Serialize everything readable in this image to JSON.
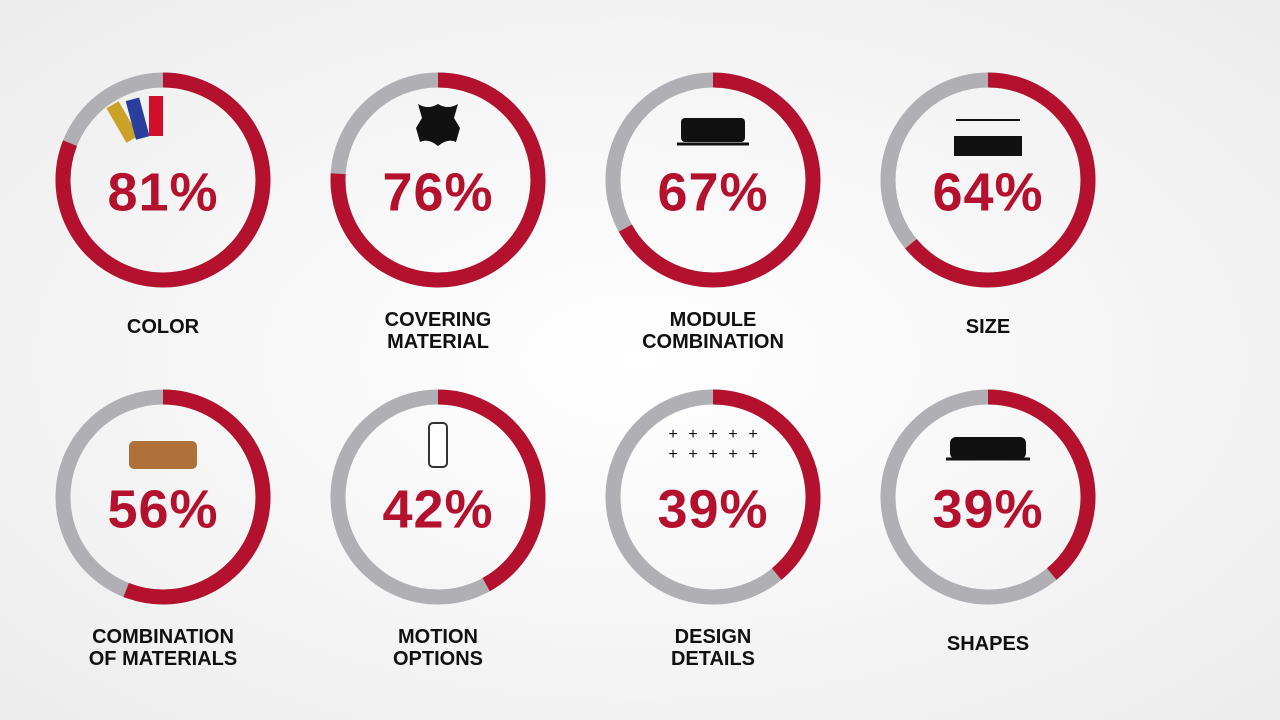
{
  "chart_data": {
    "type": "gauge",
    "categories": [
      "COLOR",
      "COVERING\nMATERIAL",
      "MODULE\nCOMBINATION",
      "SIZE",
      "COMBINATION\nOF MATERIALS",
      "MOTION\nOPTIONS",
      "DESIGN\nDETAILS",
      "SHAPES"
    ],
    "values": [
      81,
      76,
      67,
      64,
      56,
      42,
      39,
      39
    ],
    "value_labels": [
      "81%",
      "76%",
      "67%",
      "64%",
      "56%",
      "42%",
      "39%",
      "39%"
    ],
    "color": "#b3112e",
    "track_color": "#b0afb4"
  }
}
